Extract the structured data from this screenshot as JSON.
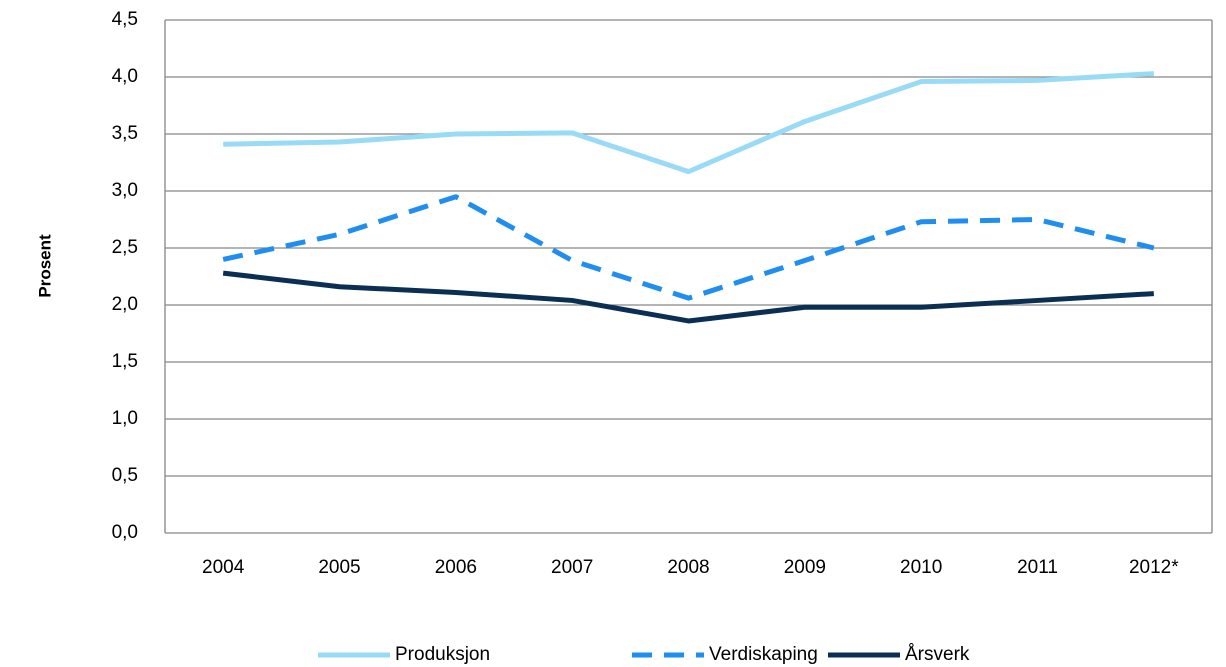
{
  "chart_data": {
    "type": "line",
    "ylabel": "Prosent",
    "categories": [
      "2004",
      "2005",
      "2006",
      "2007",
      "2008",
      "2009",
      "2010",
      "2011",
      "2012*"
    ],
    "series": [
      {
        "name": "Produksjon",
        "color": "#99dbf7",
        "dash": false,
        "values": [
          3.41,
          3.43,
          3.5,
          3.51,
          3.17,
          3.61,
          3.96,
          3.97,
          4.03
        ]
      },
      {
        "name": "Verdiskaping",
        "color": "#1f8ef0",
        "dash": true,
        "values": [
          2.4,
          2.62,
          2.95,
          2.39,
          2.06,
          2.39,
          2.73,
          2.75,
          2.5
        ]
      },
      {
        "name": "Årsverk",
        "color": "#0b2e55",
        "dash": false,
        "values": [
          2.28,
          2.16,
          2.11,
          2.04,
          1.86,
          1.98,
          1.98,
          2.04,
          2.1
        ]
      }
    ],
    "ylim": [
      0,
      4.5
    ],
    "yticks": [
      {
        "value": 0,
        "label": "0,0"
      },
      {
        "value": 0.5,
        "label": "0,5"
      },
      {
        "value": 1,
        "label": "1,0"
      },
      {
        "value": 1.5,
        "label": "1,5"
      },
      {
        "value": 2,
        "label": "2,0"
      },
      {
        "value": 2.5,
        "label": "2,5"
      },
      {
        "value": 3,
        "label": "3,0"
      },
      {
        "value": 3.5,
        "label": "3,5"
      },
      {
        "value": 4,
        "label": "4,0"
      },
      {
        "value": 4.5,
        "label": "4,5"
      }
    ],
    "grid": true,
    "legend": "bottom"
  }
}
